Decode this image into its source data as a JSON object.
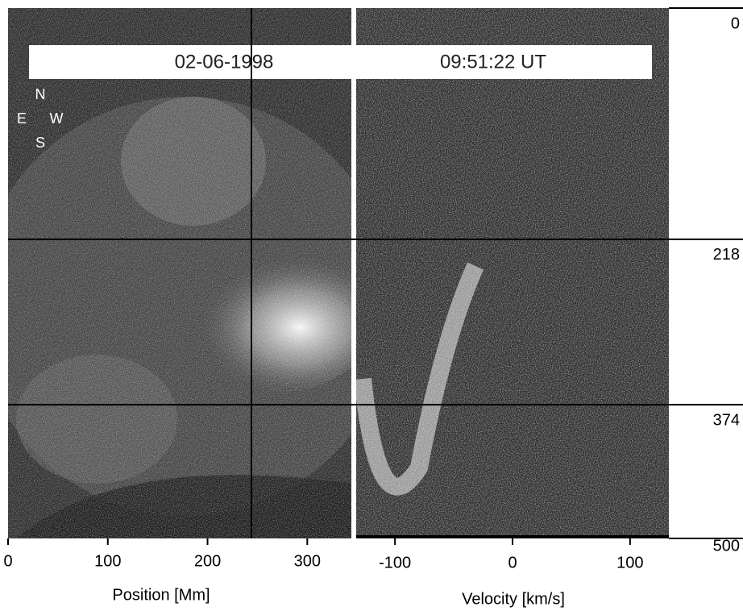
{
  "banner": {
    "date": "02-06-1998",
    "time": "09:51:22 UT"
  },
  "compass": {
    "north": "N",
    "east": "E",
    "west": "W",
    "south": "S"
  },
  "position_axis": {
    "label": "Position [Mm]",
    "xlim": [
      0,
      345
    ],
    "xticks": [
      0,
      100,
      200,
      300
    ],
    "crosshair": 244
  },
  "velocity_axis": {
    "label": "Velocity [km/s]",
    "xlim": [
      -133,
      133
    ],
    "xticks": [
      -100,
      0,
      100
    ]
  },
  "height_axis": {
    "ylim": [
      0,
      500
    ],
    "yticks": [
      0,
      218,
      374,
      500
    ],
    "crosshairs": [
      218,
      374
    ]
  }
}
